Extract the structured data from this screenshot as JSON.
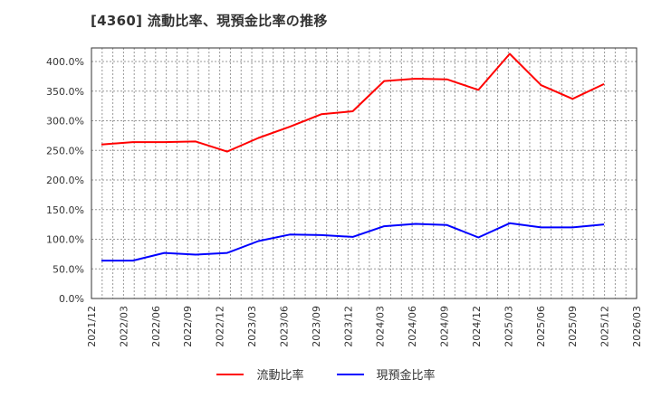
{
  "title": "[4360]  流動比率、現預金比率の推移",
  "chart_data": {
    "type": "line",
    "title": "[4360]  流動比率、現預金比率の推移",
    "xlabel": "",
    "ylabel": "",
    "ylim": [
      0,
      420
    ],
    "grid": true,
    "legend_position": "bottom",
    "y_ticks": [
      "0.0%",
      "50.0%",
      "100.0%",
      "150.0%",
      "200.0%",
      "250.0%",
      "300.0%",
      "350.0%",
      "400.0%"
    ],
    "x_ticks": [
      "2021/12",
      "2022/03",
      "2022/06",
      "2022/09",
      "2022/12",
      "2023/03",
      "2023/06",
      "2023/09",
      "2023/12",
      "2024/03",
      "2024/06",
      "2024/09",
      "2024/12",
      "2025/03",
      "2025/06",
      "2025/09",
      "2025/12",
      "2026/03"
    ],
    "x": [
      "2022/03",
      "2022/06",
      "2022/09",
      "2022/12",
      "2023/03",
      "2023/06",
      "2023/09",
      "2023/12",
      "2024/03",
      "2024/06",
      "2024/09",
      "2024/12",
      "2025/03",
      "2025/06",
      "2025/09",
      "2025/12",
      "2026/03"
    ],
    "series": [
      {
        "name": "流動比率",
        "color": "#ff0000",
        "values": [
          260,
          264,
          264,
          265,
          248,
          271,
          290,
          311,
          316,
          367,
          371,
          370,
          352,
          413,
          360,
          337,
          362
        ]
      },
      {
        "name": "現預金比率",
        "color": "#0000ff",
        "values": [
          64,
          64,
          77,
          74,
          77,
          97,
          108,
          107,
          104,
          122,
          126,
          124,
          103,
          127,
          120,
          120,
          125
        ]
      }
    ]
  },
  "legend": {
    "items": [
      {
        "label": "流動比率",
        "color": "#ff0000"
      },
      {
        "label": "現預金比率",
        "color": "#0000ff"
      }
    ]
  }
}
